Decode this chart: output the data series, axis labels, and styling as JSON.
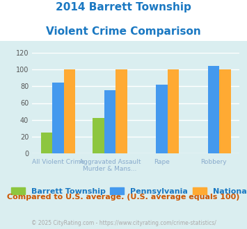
{
  "title_line1": "2014 Barrett Township",
  "title_line2": "Violent Crime Comparison",
  "series": {
    "Barrett Township": [
      25,
      42,
      0,
      0
    ],
    "Pennsylvania": [
      84,
      75,
      82,
      104
    ],
    "National": [
      100,
      100,
      100,
      100
    ]
  },
  "colors": {
    "Barrett Township": "#8dc63f",
    "Pennsylvania": "#4499ee",
    "National": "#ffaa33"
  },
  "ylim": [
    0,
    120
  ],
  "yticks": [
    0,
    20,
    40,
    60,
    80,
    100,
    120
  ],
  "xlabel_top": [
    "",
    "Aggravated Assault",
    "",
    ""
  ],
  "xlabel_bot": [
    "All Violent Crime",
    "Murder & Mans...",
    "Rape",
    "Robbery"
  ],
  "bg_color": "#daeef0",
  "title_bg": "#ffffff",
  "plot_bg": "#daeef0",
  "title_color": "#1a78c2",
  "axis_label_color": "#88aacc",
  "legend_label_color": "#1a78c2",
  "note_text": "Compared to U.S. average. (U.S. average equals 100)",
  "note_color": "#cc5500",
  "footer_text": "© 2025 CityRating.com - https://www.cityrating.com/crime-statistics/",
  "footer_color": "#aaaaaa",
  "grid_color": "#ffffff"
}
